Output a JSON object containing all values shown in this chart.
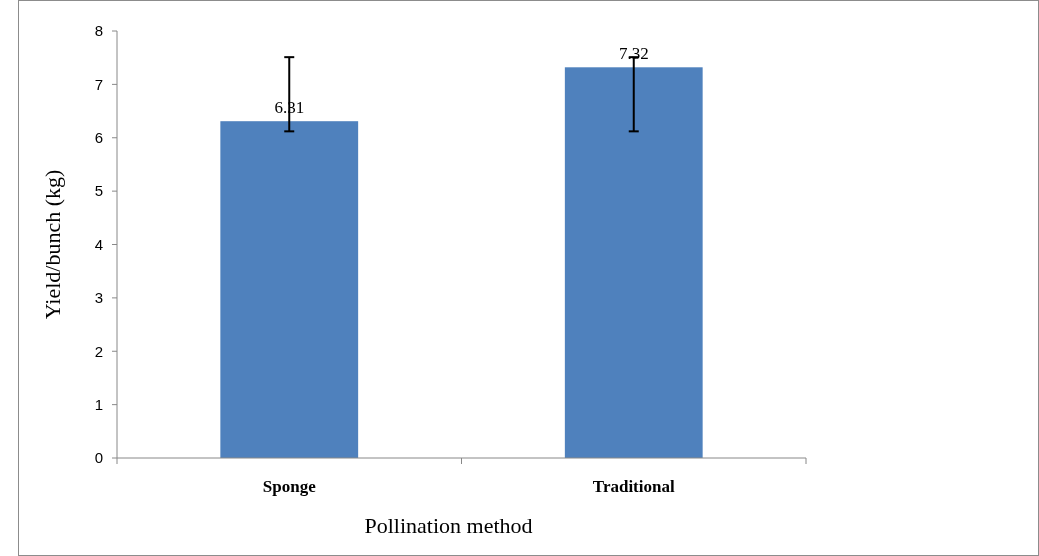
{
  "chart_data": {
    "type": "bar",
    "categories": [
      "Sponge",
      "Traditional"
    ],
    "values": [
      6.31,
      7.32
    ],
    "color": "#4f81bd",
    "errors": [
      [
        6.12,
        7.51
      ],
      [
        6.12,
        7.51
      ]
    ],
    "data_labels": true,
    "ylim": [
      0,
      8
    ],
    "yticks": [
      0,
      1,
      2,
      3,
      4,
      5,
      6,
      7,
      8
    ],
    "xlabel": "Pollination method",
    "ylabel": "Yield/bunch (kg)"
  }
}
